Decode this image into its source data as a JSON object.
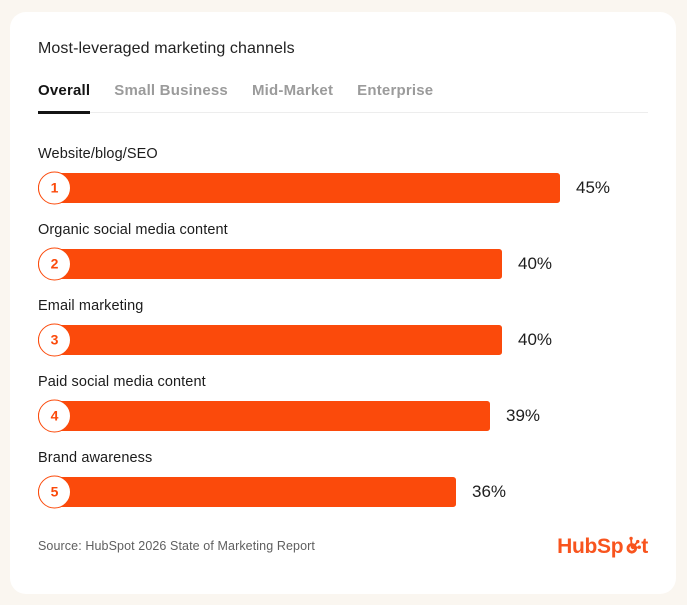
{
  "card": {
    "title": "Most-leveraged marketing channels"
  },
  "tabs": [
    {
      "label": "Overall",
      "active": true
    },
    {
      "label": "Small Business",
      "active": false
    },
    {
      "label": "Mid-Market",
      "active": false
    },
    {
      "label": "Enterprise",
      "active": false
    }
  ],
  "chart_data": {
    "type": "bar",
    "orientation": "horizontal",
    "title": "Most-leveraged marketing channels",
    "categories": [
      "Website/blog/SEO",
      "Organic social media content",
      "Email marketing",
      "Paid social media content",
      "Brand awareness"
    ],
    "values": [
      45,
      40,
      40,
      39,
      36
    ],
    "ranks": [
      1,
      2,
      3,
      4,
      5
    ],
    "value_labels": [
      "45%",
      "40%",
      "40%",
      "39%",
      "36%"
    ],
    "value_suffix": "%",
    "xlim": [
      0,
      50
    ],
    "bar_color": "#fb4a0b",
    "grid": false,
    "legend": "none"
  },
  "footer": {
    "source": "Source: HubSpot 2026 State of Marketing Report",
    "logo": {
      "name": "HubSpot",
      "pre": "HubSp",
      "post": "t"
    }
  },
  "colors": {
    "accent_orange": "#fb4a0b",
    "logo_orange": "#f8541e",
    "page_background": "#faf6f0",
    "card_background": "#ffffff",
    "text_dark": "#1f1f1f",
    "text_muted": "#9b9b9b",
    "footer_text": "#5f5f5f"
  }
}
